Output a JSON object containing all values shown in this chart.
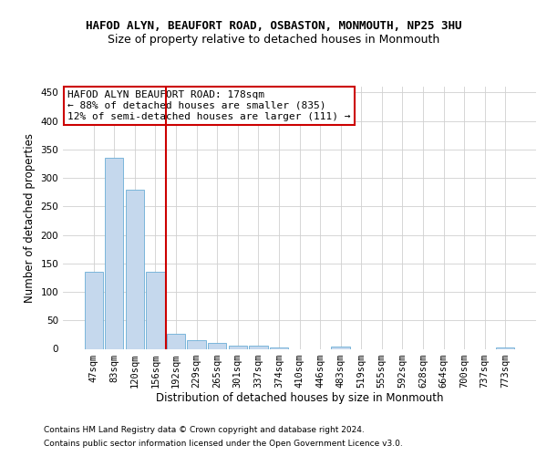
{
  "title1": "HAFOD ALYN, BEAUFORT ROAD, OSBASTON, MONMOUTH, NP25 3HU",
  "title2": "Size of property relative to detached houses in Monmouth",
  "xlabel": "Distribution of detached houses by size in Monmouth",
  "ylabel": "Number of detached properties",
  "categories": [
    "47sqm",
    "83sqm",
    "120sqm",
    "156sqm",
    "192sqm",
    "229sqm",
    "265sqm",
    "301sqm",
    "337sqm",
    "374sqm",
    "410sqm",
    "446sqm",
    "483sqm",
    "519sqm",
    "555sqm",
    "592sqm",
    "628sqm",
    "664sqm",
    "700sqm",
    "737sqm",
    "773sqm"
  ],
  "values": [
    135,
    335,
    280,
    135,
    27,
    15,
    11,
    6,
    5,
    3,
    0,
    0,
    4,
    0,
    0,
    0,
    0,
    0,
    0,
    0,
    3
  ],
  "bar_color": "#c5d8ed",
  "bar_edge_color": "#6aaed6",
  "grid_color": "#d0d0d0",
  "annotation_line_color": "#cc0000",
  "annotation_box_text": "HAFOD ALYN BEAUFORT ROAD: 178sqm\n← 88% of detached houses are smaller (835)\n12% of semi-detached houses are larger (111) →",
  "annotation_box_color": "#cc0000",
  "ylim": [
    0,
    460
  ],
  "yticks": [
    0,
    50,
    100,
    150,
    200,
    250,
    300,
    350,
    400,
    450
  ],
  "footer1": "Contains HM Land Registry data © Crown copyright and database right 2024.",
  "footer2": "Contains public sector information licensed under the Open Government Licence v3.0.",
  "bg_color": "#ffffff",
  "title1_fontsize": 9,
  "title2_fontsize": 9,
  "tick_fontsize": 7.5,
  "label_fontsize": 8.5,
  "annotation_fontsize": 8,
  "footer_fontsize": 6.5
}
